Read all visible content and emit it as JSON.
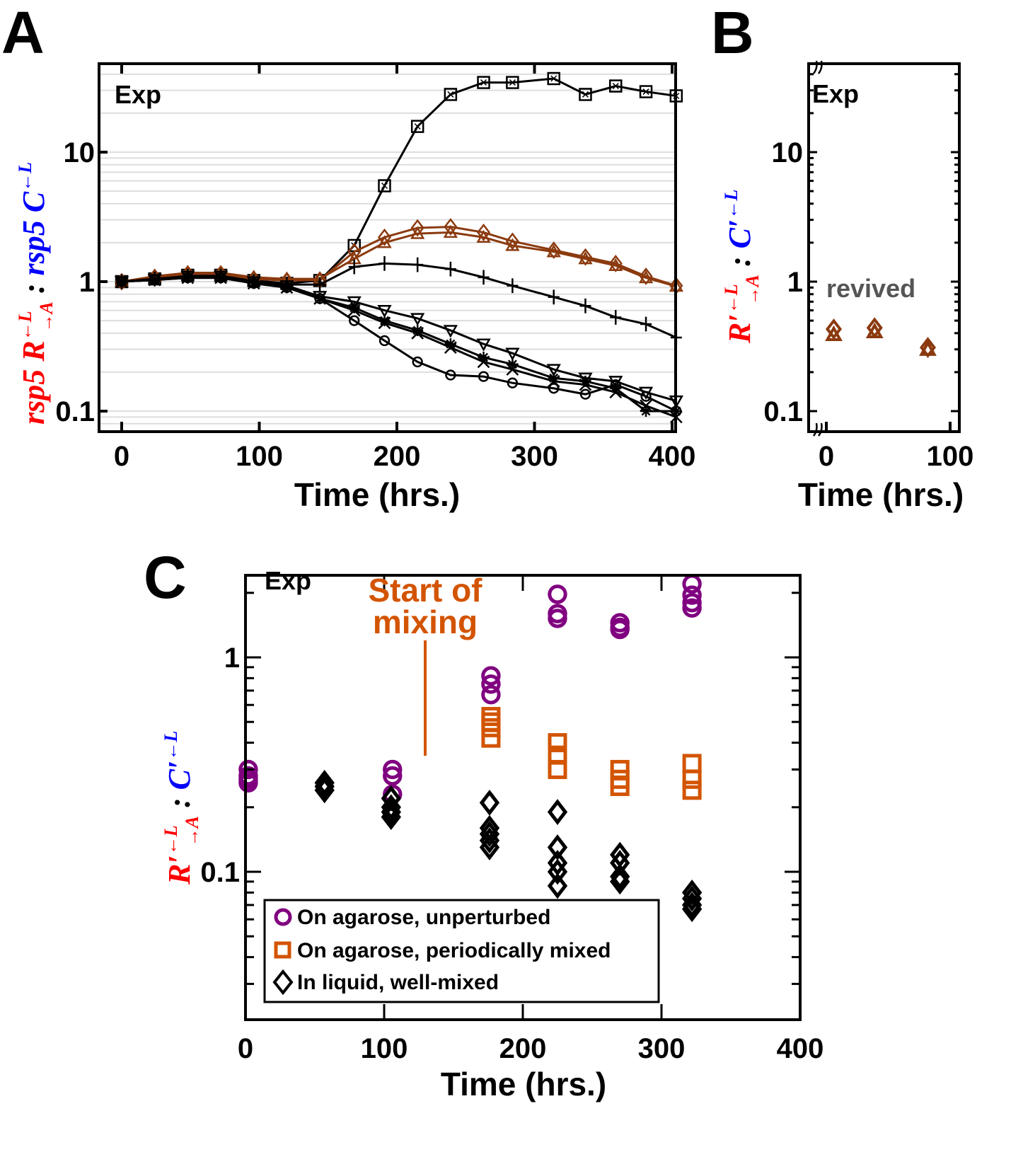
{
  "panels": {
    "A": {
      "letter": "A"
    },
    "B": {
      "letter": "B"
    },
    "C": {
      "letter": "C"
    }
  },
  "chart_data": [
    {
      "id": "A",
      "type": "line",
      "yscale": "log",
      "title": "",
      "annotation": "Exp",
      "xlabel": "Time (hrs.)",
      "ylabel_parts": [
        {
          "text": "rsp5 R",
          "color": "#ff0000"
        },
        {
          "text": ":",
          "color": "#000000"
        },
        {
          "text": "rsp5 C",
          "color": "#0000ff"
        }
      ],
      "ylabel": "rsp5 R(←L, →A) : rsp5 C(←L)",
      "xlim": [
        -10,
        410
      ],
      "ylim": [
        0.08,
        50
      ],
      "xticks": [
        "0",
        "100",
        "200",
        "300",
        "400"
      ],
      "yticks": [
        "0.1",
        "1",
        "10"
      ],
      "grid": true,
      "series": [
        {
          "name": "square-x",
          "marker": "square-x",
          "color": "#000000",
          "x": [
            0,
            24,
            48,
            72,
            96,
            120,
            144,
            169,
            191,
            215,
            239,
            263,
            284,
            314,
            337,
            359,
            381,
            403
          ],
          "y": [
            1.0,
            1.05,
            1.12,
            1.12,
            1.02,
            0.97,
            1.02,
            1.9,
            5.5,
            15.8,
            27.9,
            34.5,
            34.5,
            37.0,
            27.9,
            32.4,
            29.3,
            27.2
          ]
        },
        {
          "name": "diamond-brown",
          "marker": "diamond",
          "color": "#8b3a0f",
          "x": [
            0,
            24,
            48,
            72,
            96,
            120,
            144,
            169,
            191,
            215,
            239,
            263,
            284,
            314,
            337,
            359,
            381,
            403
          ],
          "y": [
            1.0,
            1.08,
            1.15,
            1.15,
            1.05,
            1.02,
            1.03,
            1.7,
            2.2,
            2.6,
            2.65,
            2.4,
            2.05,
            1.75,
            1.55,
            1.38,
            1.1,
            0.93
          ]
        },
        {
          "name": "triangle-brown",
          "marker": "triangle-up",
          "color": "#8b3a0f",
          "x": [
            0,
            24,
            48,
            72,
            96,
            120,
            144,
            169,
            191,
            215,
            239,
            263,
            284,
            314,
            337,
            359,
            381,
            403
          ],
          "y": [
            1.0,
            1.1,
            1.17,
            1.17,
            1.08,
            1.05,
            1.05,
            1.5,
            2.0,
            2.35,
            2.4,
            2.2,
            1.9,
            1.7,
            1.5,
            1.33,
            1.07,
            0.92
          ]
        },
        {
          "name": "plus",
          "marker": "plus",
          "color": "#000000",
          "x": [
            0,
            24,
            48,
            72,
            96,
            120,
            144,
            169,
            191,
            215,
            239,
            263,
            284,
            314,
            337,
            359,
            381,
            403
          ],
          "y": [
            1.0,
            1.05,
            1.1,
            1.1,
            1.0,
            0.95,
            0.95,
            1.3,
            1.38,
            1.35,
            1.25,
            1.08,
            0.93,
            0.76,
            0.65,
            0.53,
            0.47,
            0.37
          ]
        },
        {
          "name": "triangle-down",
          "marker": "triangle-down",
          "color": "#000000",
          "x": [
            0,
            24,
            48,
            72,
            96,
            120,
            144,
            169,
            191,
            215,
            239,
            263,
            284,
            314,
            337,
            359,
            381,
            403
          ],
          "y": [
            1.0,
            1.04,
            1.1,
            1.1,
            1.0,
            0.93,
            0.77,
            0.7,
            0.6,
            0.52,
            0.42,
            0.33,
            0.28,
            0.21,
            0.18,
            0.17,
            0.14,
            0.12
          ]
        },
        {
          "name": "asterisk",
          "marker": "asterisk",
          "color": "#000000",
          "x": [
            0,
            24,
            48,
            72,
            96,
            120,
            144,
            169,
            191,
            215,
            239,
            263,
            284,
            314,
            337,
            359,
            381,
            403
          ],
          "y": [
            1.0,
            1.03,
            1.08,
            1.08,
            0.98,
            0.9,
            0.74,
            0.63,
            0.5,
            0.42,
            0.33,
            0.26,
            0.23,
            0.18,
            0.17,
            0.15,
            0.1,
            0.1
          ]
        },
        {
          "name": "x-mark",
          "marker": "x",
          "color": "#000000",
          "x": [
            0,
            24,
            48,
            72,
            96,
            120,
            144,
            169,
            191,
            215,
            239,
            263,
            284,
            314,
            337,
            359,
            381,
            403
          ],
          "y": [
            1.0,
            1.03,
            1.07,
            1.07,
            0.97,
            0.9,
            0.74,
            0.6,
            0.48,
            0.4,
            0.31,
            0.24,
            0.21,
            0.17,
            0.16,
            0.14,
            0.11,
            0.09
          ]
        },
        {
          "name": "circle",
          "marker": "circle",
          "color": "#000000",
          "x": [
            0,
            24,
            48,
            72,
            96,
            120,
            144,
            169,
            191,
            215,
            239,
            263,
            284,
            314,
            337,
            359,
            381,
            403
          ],
          "y": [
            1.0,
            1.03,
            1.07,
            1.07,
            0.97,
            0.9,
            0.74,
            0.5,
            0.35,
            0.24,
            0.19,
            0.185,
            0.165,
            0.15,
            0.135,
            0.16,
            0.13,
            0.1
          ]
        }
      ]
    },
    {
      "id": "B",
      "type": "scatter",
      "yscale": "log",
      "annotation": "Exp",
      "annotation2": "revived",
      "xlabel": "Time (hrs.)",
      "ylabel": "R'(←L, →A) : C'(←L)",
      "ylabel_parts": [
        {
          "text": "R'",
          "color": "#ff0000"
        },
        {
          "text": ":",
          "color": "#000000"
        },
        {
          "text": "C'",
          "color": "#0000ff"
        }
      ],
      "xlim": [
        -8,
        100
      ],
      "ylim": [
        0.08,
        50
      ],
      "xticks": [
        "0",
        "100"
      ],
      "yticks": [
        "0.1",
        "1",
        "10"
      ],
      "axis_breaks": true,
      "series": [
        {
          "name": "diamond-brown",
          "marker": "diamond",
          "color": "#8b3a0f",
          "x": [
            6,
            39,
            82
          ],
          "y": [
            0.43,
            0.44,
            0.31
          ]
        },
        {
          "name": "triangle-brown",
          "marker": "triangle-up",
          "color": "#8b3a0f",
          "x": [
            6,
            39,
            82
          ],
          "y": [
            0.39,
            0.41,
            0.3
          ]
        }
      ]
    },
    {
      "id": "C",
      "type": "scatter",
      "yscale": "log",
      "annotation": "Exp",
      "annotation_mixing": [
        "Start of",
        "mixing"
      ],
      "mixing_time": 130,
      "xlabel": "Time (hrs.)",
      "ylabel": "R'(←L, →A) : C'(←L)",
      "ylabel_parts": [
        {
          "text": "R'",
          "color": "#ff0000"
        },
        {
          "text": ":",
          "color": "#000000"
        },
        {
          "text": "C'",
          "color": "#0000ff"
        }
      ],
      "xlim": [
        0,
        400
      ],
      "ylim": [
        0.022,
        3.2
      ],
      "xticks": [
        "0",
        "100",
        "200",
        "300",
        "400"
      ],
      "yticks": [
        "0.1",
        "1"
      ],
      "legend": {
        "placement": "bottom-left",
        "entries": [
          {
            "label": "On agarose, unperturbed",
            "marker": "circle",
            "color": "#800080"
          },
          {
            "label": "On agarose, periodically mixed",
            "marker": "square",
            "color": "#d35400"
          },
          {
            "label": "In liquid, well-mixed",
            "marker": "diamond",
            "color": "#000000"
          }
        ]
      },
      "series": [
        {
          "name": "On agarose, unperturbed",
          "marker": "circle",
          "color": "#800080",
          "x": [
            2,
            2,
            2,
            2,
            106,
            106,
            106,
            177,
            177,
            177,
            225,
            225,
            225,
            270,
            270,
            270,
            322,
            322,
            322,
            322
          ],
          "y": [
            0.3,
            0.28,
            0.27,
            0.26,
            0.3,
            0.28,
            0.23,
            0.82,
            0.75,
            0.67,
            1.97,
            1.6,
            1.52,
            1.45,
            1.38,
            1.35,
            2.2,
            1.95,
            1.8,
            1.7
          ]
        },
        {
          "name": "On agarose, periodically mixed",
          "marker": "square",
          "color": "#d35400",
          "x": [
            177,
            177,
            177,
            177,
            225,
            225,
            225,
            270,
            270,
            270,
            322,
            322,
            322
          ],
          "y": [
            0.53,
            0.5,
            0.47,
            0.42,
            0.4,
            0.35,
            0.3,
            0.3,
            0.27,
            0.25,
            0.32,
            0.27,
            0.24
          ]
        },
        {
          "name": "In liquid, well-mixed",
          "marker": "diamond",
          "color": "#000000",
          "x": [
            57,
            57,
            57,
            105,
            105,
            105,
            105,
            176,
            176,
            176,
            176,
            176,
            225,
            225,
            225,
            225,
            225,
            270,
            270,
            270,
            270,
            322,
            322,
            322,
            322
          ],
          "y": [
            0.26,
            0.25,
            0.24,
            0.22,
            0.2,
            0.19,
            0.18,
            0.21,
            0.16,
            0.15,
            0.14,
            0.13,
            0.19,
            0.13,
            0.11,
            0.1,
            0.086,
            0.12,
            0.11,
            0.095,
            0.09,
            0.08,
            0.075,
            0.07,
            0.067
          ]
        }
      ]
    }
  ]
}
